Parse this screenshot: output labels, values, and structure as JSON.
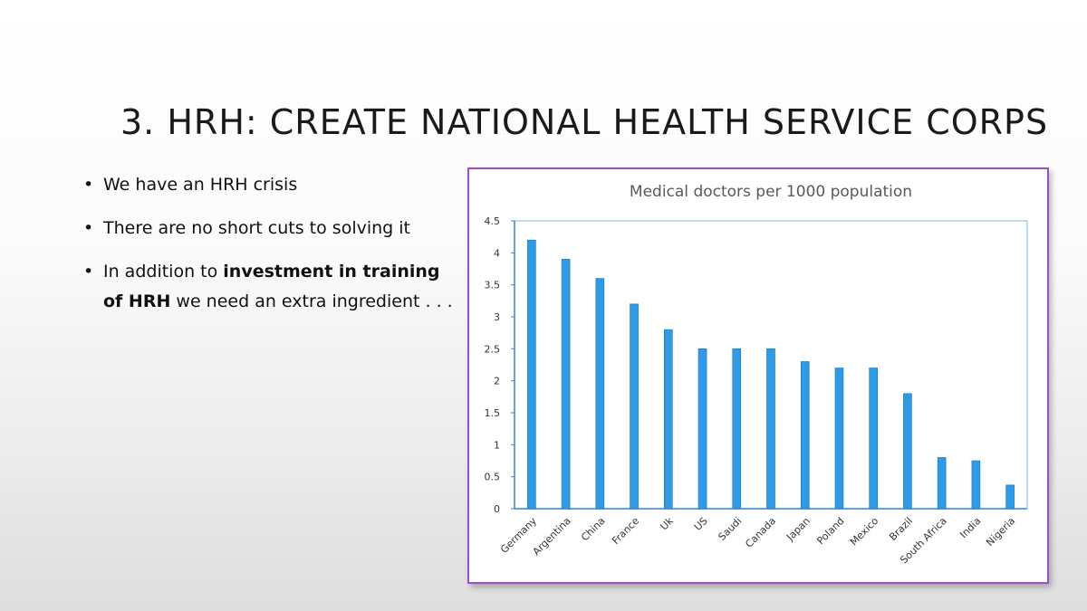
{
  "slide": {
    "title": "3. HRH: CREATE NATIONAL HEALTH SERVICE CORPS",
    "bullets": {
      "b1": "We have an HRH crisis",
      "b2": "There are no short cuts to solving it",
      "b3_pre": "In addition to ",
      "b3_bold": "investment in training of HRH",
      "b3_post": " we need an extra ingredient . . ."
    }
  },
  "colors": {
    "bar": "#2e9be8",
    "frame": "#9b4fc6"
  },
  "chart_data": {
    "type": "bar",
    "title": "Medical doctors per 1000 population",
    "categories": [
      "Germany",
      "Argentina",
      "China",
      "France",
      "Uk",
      "US",
      "Saudi",
      "Canada",
      "Japan",
      "Poland",
      "Mexico",
      "Brazil",
      "South Africa",
      "India",
      "Nigeria"
    ],
    "values": [
      4.2,
      3.9,
      3.6,
      3.2,
      2.8,
      2.5,
      2.5,
      2.5,
      2.3,
      2.2,
      2.2,
      1.8,
      0.8,
      0.75,
      0.37
    ],
    "ylim": [
      0,
      4.5
    ],
    "yticks": [
      "0",
      "0.5",
      "1",
      "1.5",
      "2",
      "2.5",
      "3",
      "3.5",
      "4",
      "4.5"
    ],
    "grid": false
  }
}
